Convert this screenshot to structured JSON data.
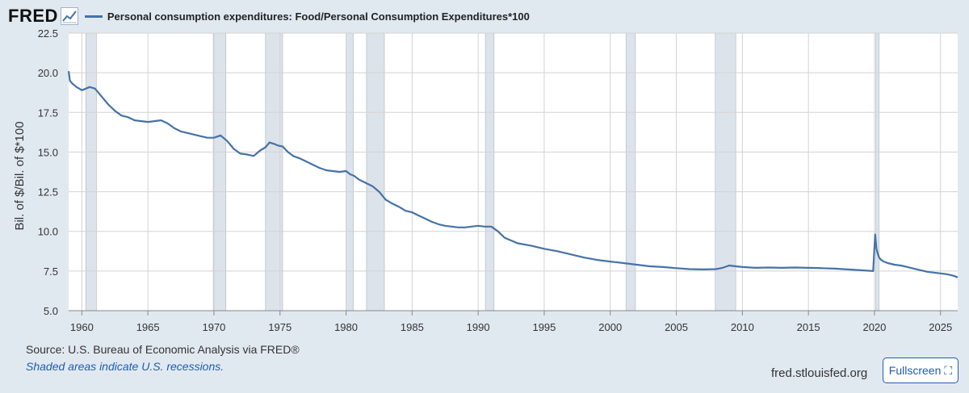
{
  "header": {
    "logo_text": "FRED",
    "logo_icon": "line-chart-icon",
    "legend_label": "Personal consumption expenditures: Food/Personal Consumption Expenditures*100",
    "legend_color": "#4572a7"
  },
  "footer": {
    "source": "Source: U.S. Bureau of Economic Analysis via FRED®",
    "recessions_note": "Shaded areas indicate U.S. recessions.",
    "site": "fred.stlouisfed.org",
    "fullscreen_label": "Fullscreen",
    "fullscreen_icon": "expand-icon"
  },
  "colors": {
    "background": "#e1e9f0",
    "plot_background": "#ffffff",
    "recession_shade": "#dde3ea",
    "line": "#4572a7",
    "link": "#1f5bb2"
  },
  "chart_data": {
    "type": "line",
    "title": "",
    "xlabel": "",
    "ylabel": "Bil. of $/Bil. of $*100",
    "xlim": [
      1959.0,
      2026.3
    ],
    "ylim": [
      5.0,
      22.5
    ],
    "x_ticks": [
      "1960",
      "1965",
      "1970",
      "1975",
      "1980",
      "1985",
      "1990",
      "1995",
      "2000",
      "2005",
      "2010",
      "2015",
      "2020",
      "2025"
    ],
    "y_ticks": [
      "5.0",
      "7.5",
      "10.0",
      "12.5",
      "15.0",
      "17.5",
      "20.0",
      "22.5"
    ],
    "grid": true,
    "legend": "top-left",
    "recessions": [
      [
        1960.3,
        1961.1
      ],
      [
        1969.95,
        1970.9
      ],
      [
        1973.9,
        1975.2
      ],
      [
        1980.0,
        1980.55
      ],
      [
        1981.55,
        1982.9
      ],
      [
        1990.55,
        1991.2
      ],
      [
        2001.2,
        2001.9
      ],
      [
        2007.95,
        2009.5
      ],
      [
        2020.1,
        2020.35
      ]
    ],
    "series": [
      {
        "x": [
          1959.0,
          1959.1,
          1959.3,
          1959.6,
          1960.0,
          1960.3,
          1960.6,
          1961.0,
          1961.3,
          1961.6,
          1962.0,
          1962.5,
          1963.0,
          1963.5,
          1964.0,
          1964.5,
          1965.0,
          1965.5,
          1966.0,
          1966.5,
          1967.0,
          1967.5,
          1968.0,
          1968.5,
          1969.0,
          1969.5,
          1970.0,
          1970.5,
          1971.0,
          1971.5,
          1972.0,
          1972.5,
          1973.0,
          1973.5,
          1973.9,
          1974.2,
          1974.6,
          1974.9,
          1975.2,
          1975.6,
          1976.0,
          1976.5,
          1977.0,
          1977.5,
          1978.0,
          1978.5,
          1979.0,
          1979.5,
          1980.0,
          1980.3,
          1980.6,
          1981.0,
          1981.5,
          1982.0,
          1982.5,
          1983.0,
          1983.5,
          1984.0,
          1984.5,
          1985.0,
          1985.5,
          1986.0,
          1986.5,
          1987.0,
          1987.5,
          1988.0,
          1988.5,
          1989.0,
          1989.5,
          1990.0,
          1990.5,
          1991.0,
          1991.5,
          1992.0,
          1993.0,
          1994.0,
          1995.0,
          1996.0,
          1997.0,
          1998.0,
          1999.0,
          2000.0,
          2001.0,
          2002.0,
          2003.0,
          2004.0,
          2005.0,
          2006.0,
          2007.0,
          2008.0,
          2008.5,
          2009.0,
          2009.5,
          2010.0,
          2011.0,
          2012.0,
          2013.0,
          2014.0,
          2015.0,
          2016.0,
          2017.0,
          2018.0,
          2019.0,
          2019.9,
          2020.05,
          2020.15,
          2020.25,
          2020.35,
          2020.5,
          2020.7,
          2021.0,
          2021.5,
          2022.0,
          2022.5,
          2023.0,
          2023.5,
          2024.0,
          2024.5,
          2025.0,
          2025.5,
          2026.0,
          2026.3
        ],
        "values": [
          20.1,
          19.5,
          19.3,
          19.1,
          18.9,
          19.0,
          19.1,
          19.0,
          18.7,
          18.4,
          18.0,
          17.6,
          17.3,
          17.2,
          17.0,
          16.95,
          16.9,
          16.95,
          17.0,
          16.8,
          16.5,
          16.3,
          16.2,
          16.1,
          16.0,
          15.9,
          15.9,
          16.05,
          15.7,
          15.2,
          14.9,
          14.85,
          14.75,
          15.1,
          15.3,
          15.6,
          15.5,
          15.4,
          15.35,
          15.0,
          14.75,
          14.6,
          14.4,
          14.2,
          14.0,
          13.85,
          13.8,
          13.75,
          13.8,
          13.6,
          13.5,
          13.25,
          13.05,
          12.85,
          12.5,
          12.0,
          11.75,
          11.55,
          11.3,
          11.2,
          11.0,
          10.8,
          10.6,
          10.45,
          10.35,
          10.3,
          10.25,
          10.25,
          10.3,
          10.35,
          10.3,
          10.3,
          10.0,
          9.6,
          9.25,
          9.1,
          8.9,
          8.75,
          8.55,
          8.35,
          8.2,
          8.1,
          8.0,
          7.9,
          7.8,
          7.75,
          7.68,
          7.62,
          7.6,
          7.62,
          7.7,
          7.85,
          7.8,
          7.75,
          7.7,
          7.72,
          7.7,
          7.72,
          7.7,
          7.68,
          7.65,
          7.6,
          7.55,
          7.5,
          9.8,
          8.9,
          8.6,
          8.35,
          8.2,
          8.1,
          8.0,
          7.9,
          7.85,
          7.75,
          7.65,
          7.55,
          7.45,
          7.4,
          7.35,
          7.3,
          7.2,
          7.1
        ]
      }
    ]
  }
}
